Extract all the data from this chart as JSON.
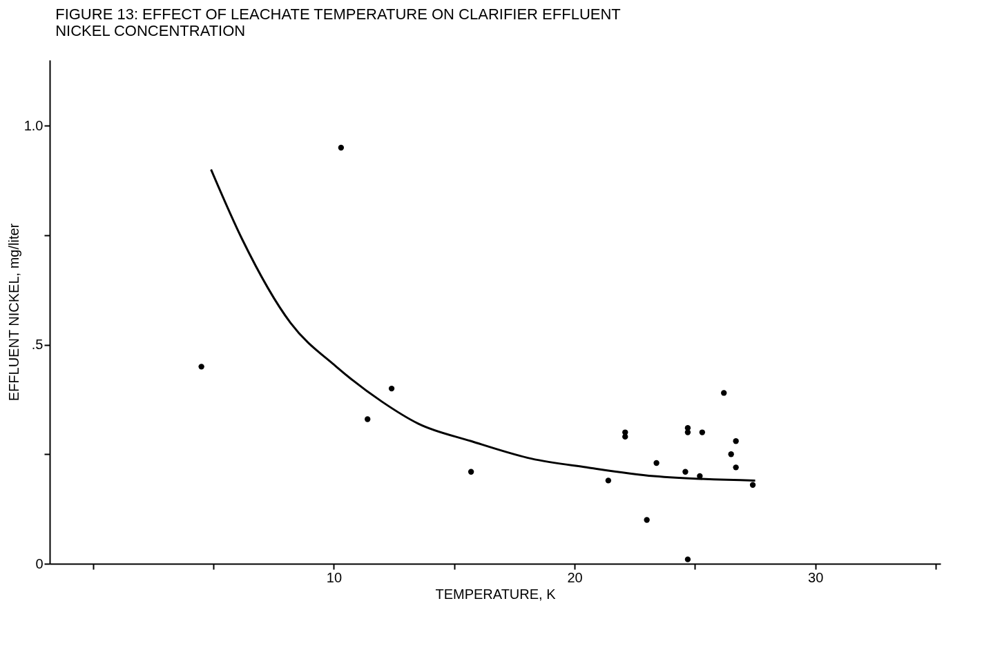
{
  "chart_data": {
    "type": "scatter",
    "title": "FIGURE 13:  EFFECT OF LEACHATE TEMPERATURE ON CLARIFIER EFFLUENT\nNICKEL CONCENTRATION",
    "xlabel": "TEMPERATURE, K",
    "ylabel": "EFFLUENT NICKEL, mg/liter",
    "xlim": [
      -1.8,
      35.2
    ],
    "xticks": [
      {
        "value": 0,
        "label": null
      },
      {
        "value": 5,
        "label": null
      },
      10,
      {
        "value": 15,
        "label": null
      },
      20,
      {
        "value": 25,
        "label": null
      },
      30,
      {
        "value": 35,
        "label": null
      }
    ],
    "ylim": [
      0,
      1.15
    ],
    "yticks": [
      0,
      {
        "value": 0.25,
        "label": null
      },
      {
        "value": 0.5,
        "label": ".5"
      },
      {
        "value": 0.75,
        "label": null
      },
      {
        "value": 1.0,
        "label": "1.0"
      }
    ],
    "grid": false,
    "marker": "circle",
    "series": [
      {
        "color": "#000000",
        "x": [
          4.5,
          10.3,
          11.4,
          12.4,
          15.7,
          21.4,
          22.1,
          22.1,
          23.0,
          23.4,
          24.6,
          24.7,
          24.7,
          24.7,
          25.2,
          25.3,
          26.2,
          26.5,
          26.7,
          26.7,
          27.4
        ],
        "values": [
          0.45,
          0.95,
          0.33,
          0.4,
          0.21,
          0.19,
          0.3,
          0.29,
          0.1,
          0.23,
          0.21,
          0.31,
          0.3,
          0.01,
          0.2,
          0.3,
          0.39,
          0.25,
          0.28,
          0.22,
          0.18
        ]
      },
      {
        "type": "line",
        "color": "#000000",
        "marker": "none",
        "x": [
          4.9,
          6.2,
          8.2,
          10.1,
          12.0,
          13.5,
          15.7,
          18.2,
          20.5,
          23.3,
          27.5
        ],
        "values": [
          0.9,
          0.74,
          0.55,
          0.45,
          0.37,
          0.32,
          0.28,
          0.24,
          0.22,
          0.2,
          0.19
        ]
      }
    ]
  }
}
